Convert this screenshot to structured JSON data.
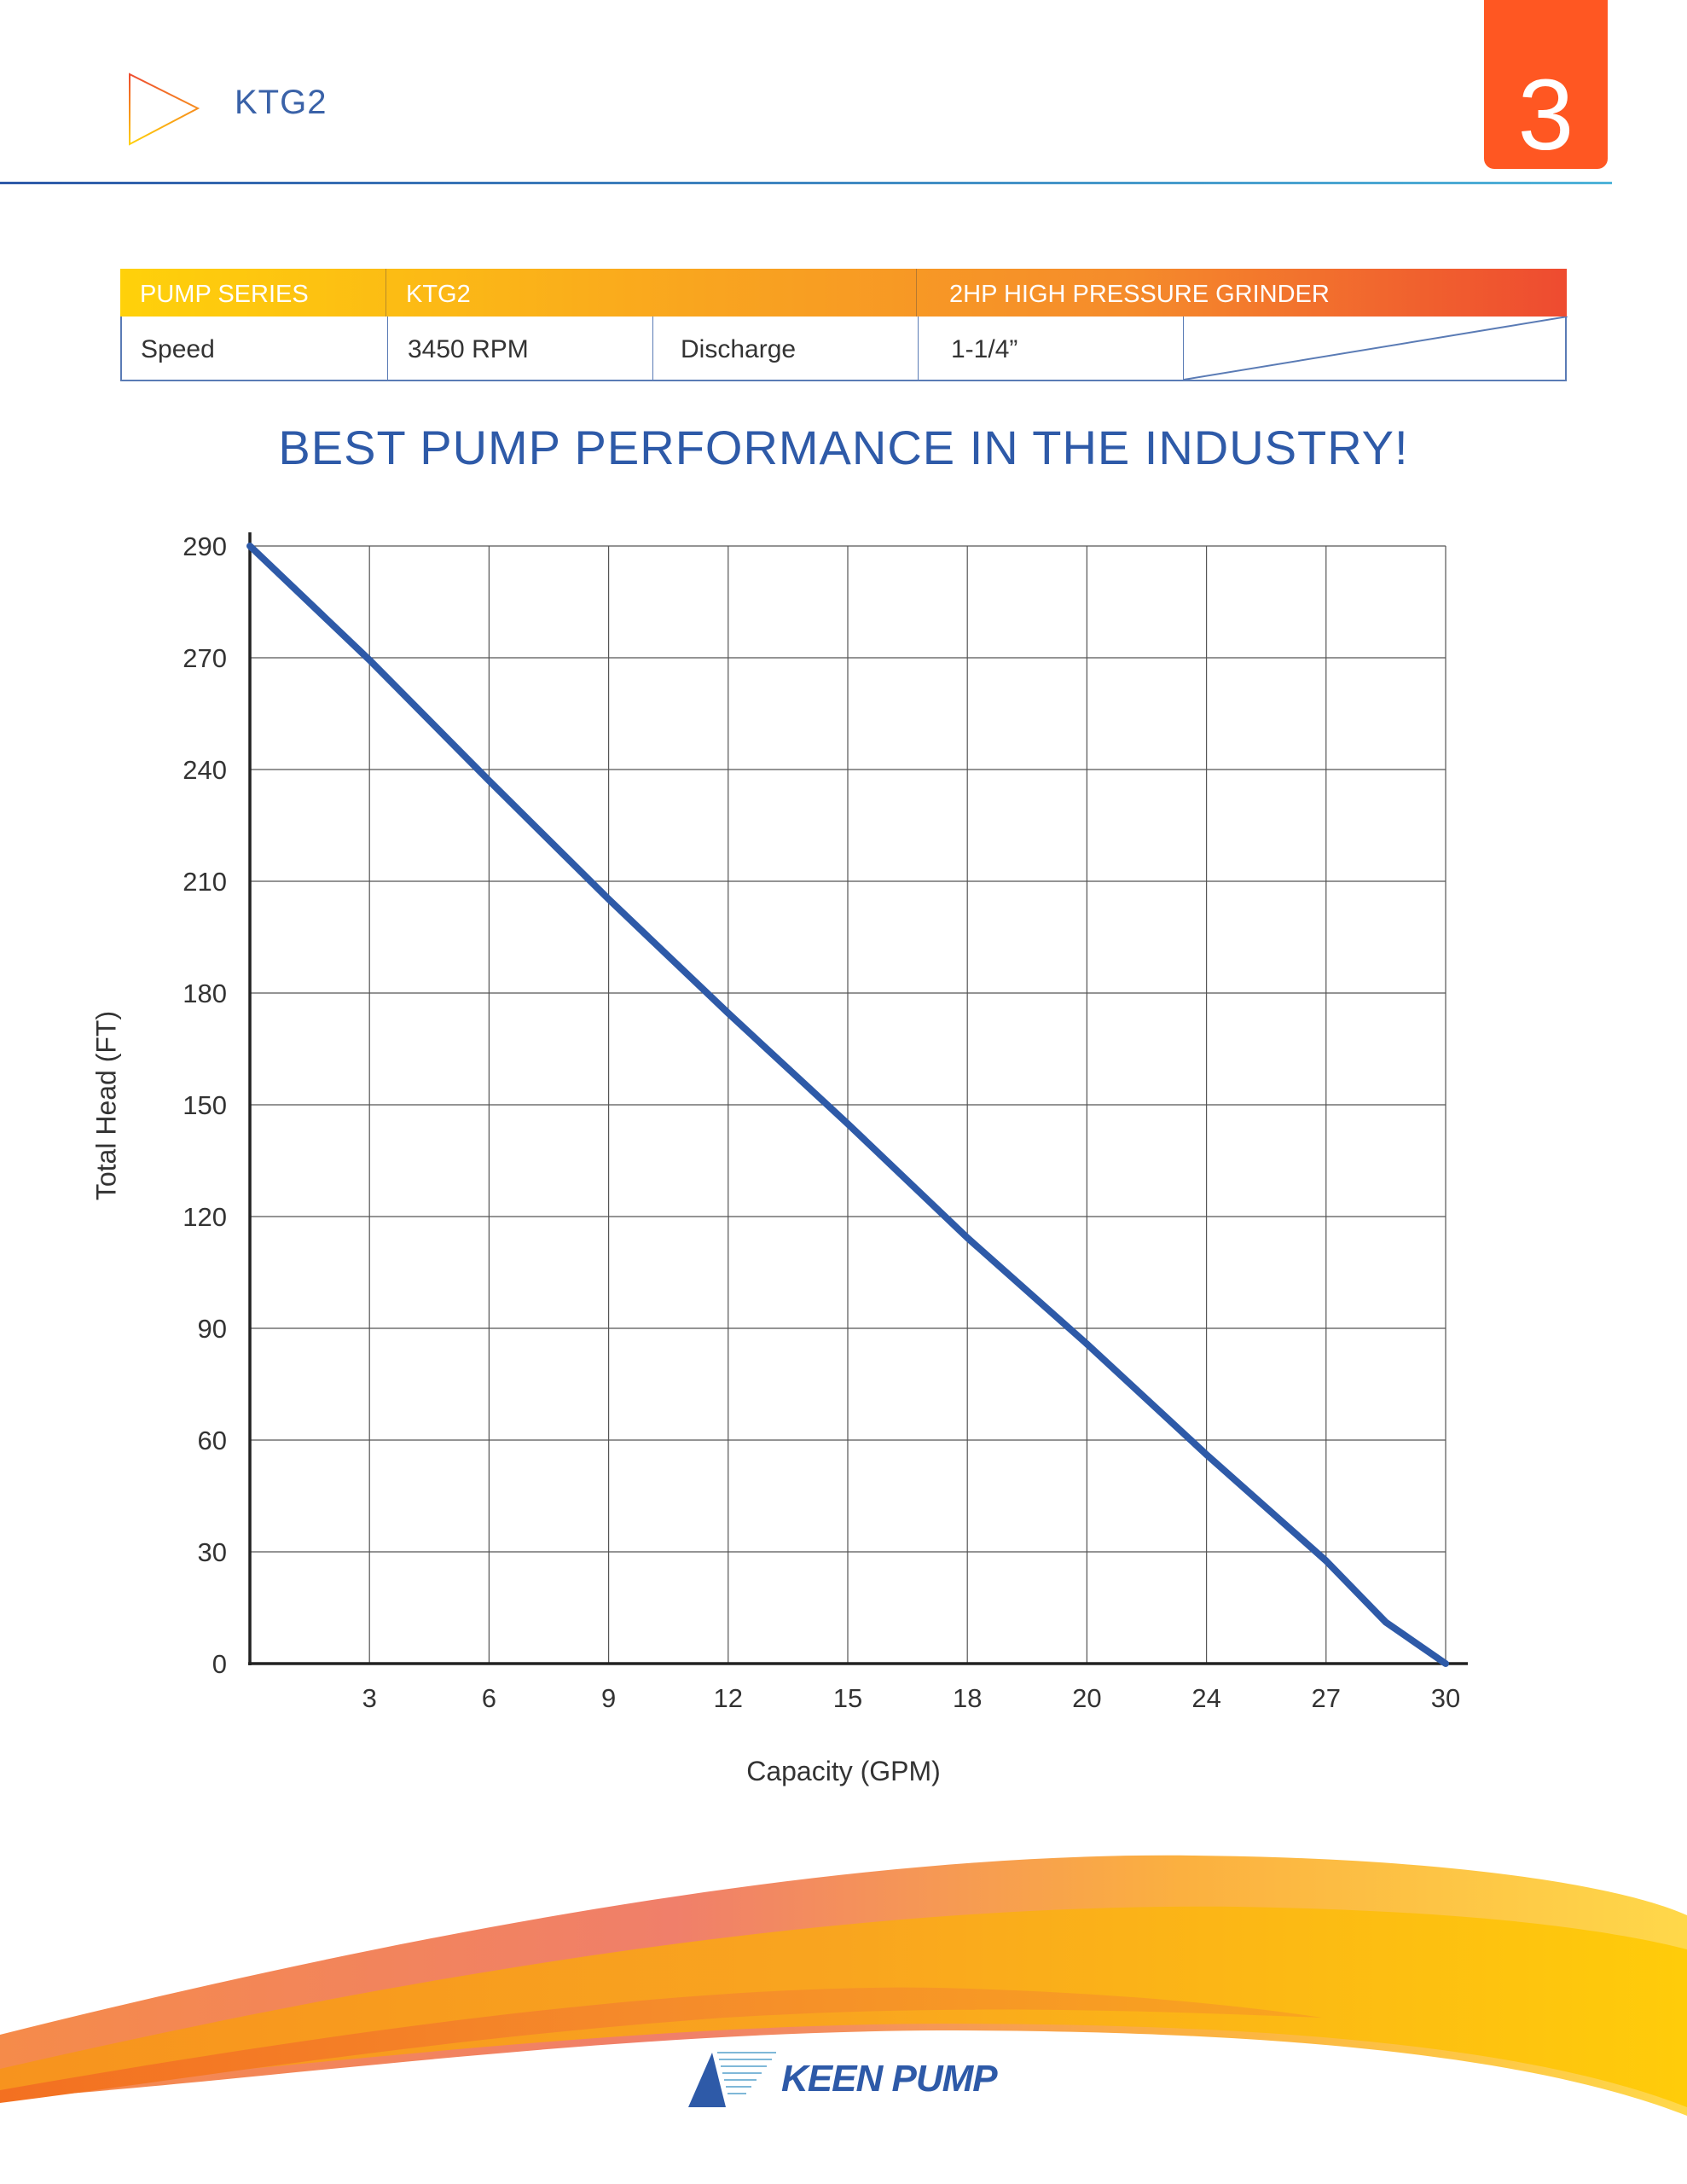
{
  "header": {
    "brand": "KTG2",
    "page_number": "3"
  },
  "spec_table": {
    "header": [
      "PUMP SERIES",
      "KTG2",
      "2HP HIGH PRESSURE GRINDER"
    ],
    "row": {
      "speed_label": "Speed",
      "speed_value": "3450 RPM",
      "discharge_label": "Discharge",
      "discharge_value": "1-1/4”"
    }
  },
  "headline": "BEST PUMP PERFORMANCE IN THE INDUSTRY!",
  "chart_data": {
    "type": "line",
    "title": "",
    "xlabel": "Capacity (GPM)",
    "ylabel": "Total Head (FT)",
    "x_ticks": [
      "3",
      "6",
      "9",
      "12",
      "15",
      "18",
      "20",
      "24",
      "27",
      "30"
    ],
    "y_ticks": [
      "0",
      "30",
      "60",
      "90",
      "120",
      "150",
      "180",
      "210",
      "240",
      "270",
      "290"
    ],
    "grid": true,
    "note": "Tick labels are evenly spaced; series positions given in tick-index units (x: 0-10, y: 0-10)",
    "series": [
      {
        "name": "KTG2",
        "color": "#2e5aa8",
        "x": [
          0,
          1,
          2,
          3,
          4,
          5,
          6,
          7,
          8,
          9,
          9.5,
          10
        ],
        "y": [
          10,
          8.98,
          7.9,
          6.84,
          5.82,
          4.83,
          3.81,
          2.86,
          1.87,
          0.92,
          0.37,
          0
        ]
      }
    ]
  },
  "footer": {
    "logo": "KEEN PUMP"
  },
  "colors": {
    "accent": "#ff5722",
    "brand_blue": "#2e5aa8"
  }
}
